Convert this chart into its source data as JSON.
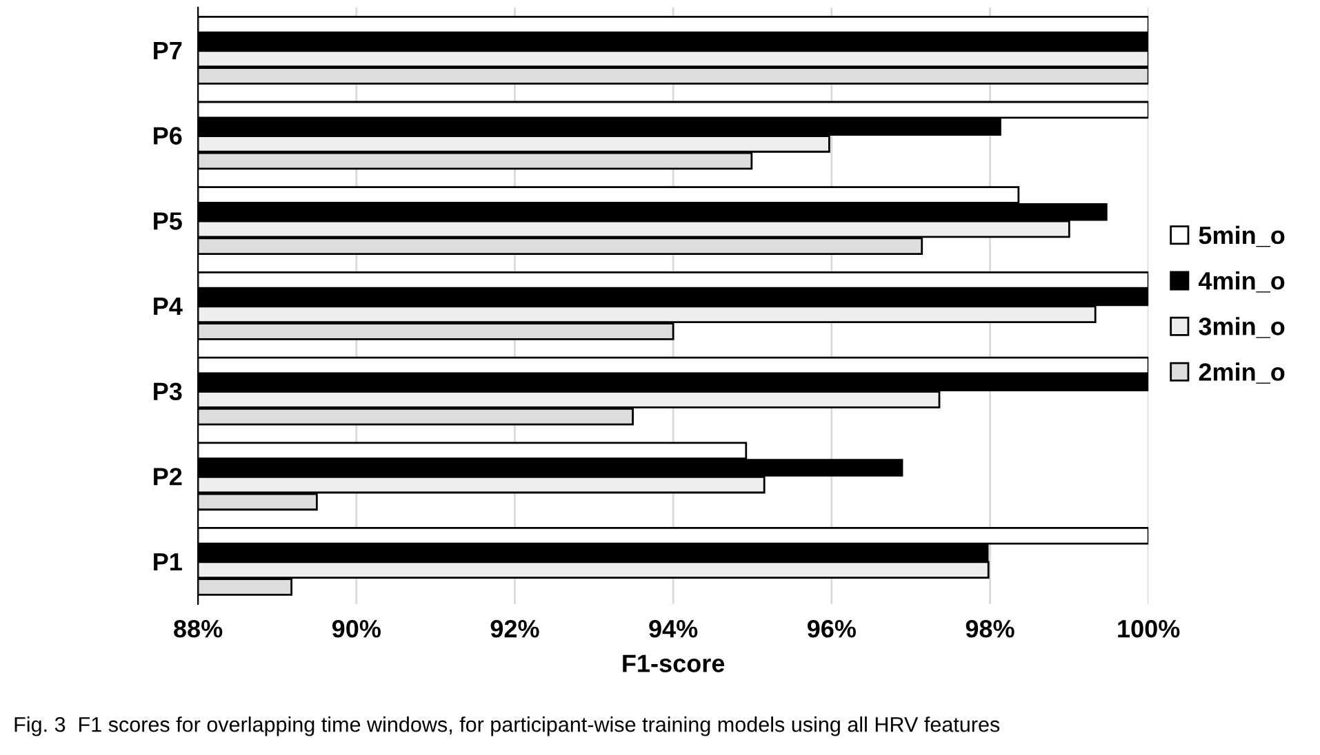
{
  "chart_data": {
    "type": "bar",
    "orientation": "horizontal",
    "xlabel": "F1-score",
    "categories": [
      "P7",
      "P6",
      "P5",
      "P4",
      "P3",
      "P2",
      "P1"
    ],
    "series": [
      {
        "name": "5min_o",
        "color": "#ffffff",
        "values": [
          100,
          100,
          98.36,
          100,
          100,
          94.92,
          100
        ]
      },
      {
        "name": "4min_o",
        "color": "#000000",
        "values": [
          100,
          98.13,
          99.47,
          100,
          100,
          96.89,
          97.97
        ]
      },
      {
        "name": "3min_o",
        "color": "#eeeeee",
        "values": [
          100,
          95.97,
          99.0,
          99.33,
          97.36,
          95.15,
          97.98
        ]
      },
      {
        "name": "2min_o",
        "color": "#dddddd",
        "values": [
          100,
          94.99,
          97.14,
          94.0,
          93.49,
          89.5,
          89.18
        ]
      }
    ],
    "xlim": [
      88,
      100
    ],
    "xticks": [
      {
        "value": 88,
        "label": "88%"
      },
      {
        "value": 90,
        "label": "90%"
      },
      {
        "value": 92,
        "label": "92%"
      },
      {
        "value": 94,
        "label": "94%"
      },
      {
        "value": 96,
        "label": "96%"
      },
      {
        "value": 98,
        "label": "98%"
      },
      {
        "value": 100,
        "label": "100%"
      }
    ],
    "grid": "x",
    "legend": "right",
    "annotations": [
      "Fig. 3  F1 scores for overlapping time windows, for participant-wise training models using all HRV features"
    ]
  }
}
